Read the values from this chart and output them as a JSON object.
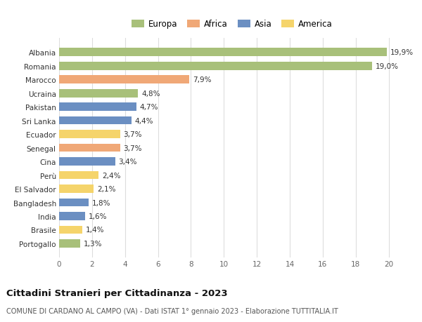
{
  "countries": [
    "Portogallo",
    "Brasile",
    "India",
    "Bangladesh",
    "El Salvador",
    "Perù",
    "Cina",
    "Senegal",
    "Ecuador",
    "Sri Lanka",
    "Pakistan",
    "Ucraina",
    "Marocco",
    "Romania",
    "Albania"
  ],
  "values": [
    1.3,
    1.4,
    1.6,
    1.8,
    2.1,
    2.4,
    3.4,
    3.7,
    3.7,
    4.4,
    4.7,
    4.8,
    7.9,
    19.0,
    19.9
  ],
  "labels": [
    "1,3%",
    "1,4%",
    "1,6%",
    "1,8%",
    "2,1%",
    "2,4%",
    "3,4%",
    "3,7%",
    "3,7%",
    "4,4%",
    "4,7%",
    "4,8%",
    "7,9%",
    "19,0%",
    "19,9%"
  ],
  "continents": [
    "Europa",
    "America",
    "Asia",
    "Asia",
    "America",
    "America",
    "Asia",
    "Africa",
    "America",
    "Asia",
    "Asia",
    "Europa",
    "Africa",
    "Europa",
    "Europa"
  ],
  "colors": {
    "Europa": "#a8c07a",
    "Africa": "#f0a877",
    "Asia": "#6b8fc2",
    "America": "#f5d46b"
  },
  "xlim": [
    0,
    21
  ],
  "xticks": [
    0,
    2,
    4,
    6,
    8,
    10,
    12,
    14,
    16,
    18,
    20
  ],
  "title": "Cittadini Stranieri per Cittadinanza - 2023",
  "subtitle": "COMUNE DI CARDANO AL CAMPO (VA) - Dati ISTAT 1° gennaio 2023 - Elaborazione TUTTITALIA.IT",
  "background_color": "#ffffff",
  "grid_color": "#dddddd",
  "bar_height": 0.6
}
